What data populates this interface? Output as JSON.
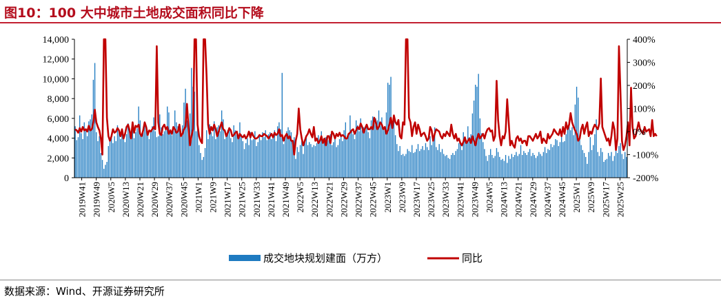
{
  "figure": {
    "title": "图10：100 大中城市土地成交面积同比下降",
    "source": "数据来源：Wind、开源证券研究所"
  },
  "chart_data": {
    "type": "bar+line",
    "left_axis": {
      "ylim": [
        0,
        14000
      ],
      "ticks": [
        "0",
        "2,000",
        "4,000",
        "6,000",
        "8,000",
        "10,000",
        "12,000",
        "14,000"
      ]
    },
    "right_axis": {
      "ylim": [
        -200,
        400
      ],
      "unit": "%",
      "ticks": [
        "-200%",
        "-100%",
        "0%",
        "100%",
        "200%",
        "300%",
        "400%"
      ]
    },
    "x_tick_labels": [
      "2019W41",
      "2019W49",
      "2020W5",
      "2020W13",
      "2020W21",
      "2020W29",
      "2020W37",
      "2020W45",
      "2021W1",
      "2021W9",
      "2021W17",
      "2021W25",
      "2021W33",
      "2021W41",
      "2021W49",
      "2022W5",
      "2022W13",
      "2022W21",
      "2022W29",
      "2022W37",
      "2022W45",
      "2023W1",
      "2023W9",
      "2023W17",
      "2023W25",
      "2023W33",
      "2023W41",
      "2023W49",
      "2024W5",
      "2024W13",
      "2024W21",
      "2024W29",
      "2024W37",
      "2024W45",
      "2025W1",
      "2025W9",
      "2025W17",
      "2025W25"
    ],
    "legend": [
      {
        "label": "成交地块规划建面（万方）",
        "color": "#1f7bc1",
        "type": "bar"
      },
      {
        "label": "同比",
        "color": "#c00000",
        "type": "line"
      }
    ],
    "series": [
      {
        "name": "成交地块规划建面（万方）",
        "axis": "left",
        "values": [
          5200,
          3800,
          4100,
          6300,
          4500,
          3900,
          5600,
          4800,
          4200,
          5700,
          5900,
          6400,
          9900,
          11600,
          4600,
          3700,
          4200,
          2500,
          1800,
          900,
          1300,
          1600,
          3200,
          3800,
          4400,
          3500,
          4200,
          3700,
          5300,
          4800,
          3900,
          4600,
          4100,
          3600,
          4400,
          5500,
          4800,
          4200,
          5300,
          4000,
          4600,
          5000,
          7200,
          5800,
          4300,
          4800,
          5400,
          4900,
          4400,
          3900,
          4600,
          5200,
          6100,
          4700,
          4100,
          4200,
          6400,
          5100,
          4400,
          4700,
          5000,
          7200,
          6600,
          4900,
          4300,
          5200,
          6800,
          5600,
          5200,
          4800,
          4300,
          5300,
          7600,
          9000,
          5800,
          4800,
          6500,
          11100,
          9200,
          8700,
          4700,
          6400,
          3300,
          2500,
          1800,
          2100,
          3000,
          4800,
          3900,
          5400,
          4600,
          4200,
          5700,
          3900,
          5100,
          5300,
          4700,
          6800,
          5900,
          3900,
          4400,
          4800,
          5100,
          4000,
          3600,
          5300,
          4800,
          4600,
          4100,
          5600,
          4400,
          3700,
          2900,
          3500,
          4000,
          3300,
          4600,
          3800,
          3900,
          4700,
          3200,
          3600,
          4200,
          3800,
          4600,
          4100,
          4800,
          3800,
          4400,
          4600,
          3900,
          4200,
          4800,
          3700,
          5200,
          5600,
          4900,
          10600,
          3400,
          4300,
          4700,
          5100,
          4800,
          4600,
          3800,
          4100,
          1900,
          3100,
          2600,
          3300,
          3700,
          2400,
          3700,
          4200,
          3300,
          3600,
          3400,
          3100,
          3300,
          3200,
          3500,
          4300,
          3600,
          4700,
          3800,
          3900,
          4100,
          4000,
          3800,
          4400,
          3300,
          3600,
          3900,
          3100,
          3300,
          3900,
          4200,
          3700,
          4800,
          5600,
          4100,
          4400,
          6300,
          4800,
          4400,
          3900,
          5800,
          5300,
          4700,
          6000,
          4800,
          5100,
          4900,
          5400,
          4600,
          4000,
          5800,
          6200,
          5600,
          6000,
          5800,
          6800,
          5300,
          6100,
          4800,
          5100,
          6600,
          9600,
          9400,
          10200,
          5700,
          6100,
          4300,
          3400,
          2700,
          3200,
          2300,
          2400,
          2200,
          2400,
          2900,
          2700,
          2600,
          3300,
          2500,
          2600,
          2900,
          3400,
          2700,
          2900,
          3200,
          2800,
          3500,
          3100,
          2800,
          4200,
          3300,
          3900,
          5100,
          3100,
          2800,
          3400,
          2600,
          2900,
          2400,
          2200,
          2300,
          2000,
          1900,
          2300,
          2500,
          2300,
          2700,
          2900,
          3500,
          3700,
          2800,
          4600,
          3800,
          3600,
          5200,
          4100,
          4400,
          6500,
          7800,
          9400,
          9200,
          10500,
          6000,
          4500,
          3600,
          2900,
          2200,
          1700,
          2300,
          2900,
          2300,
          2000,
          2200,
          3000,
          2600,
          2100,
          1800,
          1900,
          1700,
          2300,
          1500,
          2200,
          1900,
          2400,
          2100,
          2300,
          2600,
          2200,
          2400,
          3300,
          2300,
          2700,
          2500,
          2300,
          2600,
          2900,
          2200,
          2500,
          2300,
          2000,
          2200,
          2600,
          2400,
          2200,
          2600,
          3100,
          2500,
          2900,
          2800,
          3400,
          3100,
          3300,
          3900,
          3800,
          3200,
          3600,
          4700,
          3600,
          3700,
          4400,
          4900,
          5300,
          4800,
          5100,
          4300,
          7400,
          9200,
          8100,
          4200,
          3300,
          2800,
          2500,
          2100,
          1400,
          2600,
          4100,
          2800,
          3300,
          4400,
          5900,
          2600,
          2200,
          3000,
          2600,
          1600,
          1800,
          1900,
          2500,
          2200,
          2600,
          1700,
          2200,
          2800,
          2500,
          3200,
          3500,
          2400,
          1900,
          2600,
          2100
        ]
      },
      {
        "name": "同比",
        "axis": "right",
        "values": [
          10,
          5,
          -5,
          15,
          0,
          20,
          5,
          10,
          0,
          25,
          5,
          10,
          40,
          95,
          40,
          20,
          5,
          -30,
          -100,
          400,
          400,
          60,
          -20,
          -40,
          -20,
          10,
          -5,
          0,
          15,
          5,
          -20,
          10,
          -30,
          -10,
          20,
          30,
          5,
          -30,
          40,
          -5,
          25,
          20,
          30,
          -10,
          -20,
          5,
          40,
          20,
          -15,
          5,
          0,
          10,
          20,
          10,
          370,
          40,
          -10,
          -15,
          20,
          30,
          10,
          20,
          -10,
          5,
          -10,
          20,
          10,
          -5,
          0,
          30,
          -20,
          -10,
          10,
          20,
          120,
          20,
          -60,
          -20,
          10,
          400,
          400,
          30,
          -20,
          -40,
          -50,
          400,
          400,
          240,
          30,
          -10,
          20,
          5,
          30,
          10,
          -20,
          0,
          20,
          40,
          10,
          5,
          -20,
          -5,
          15,
          5,
          -20,
          -15,
          -5,
          0,
          -30,
          -10,
          -20,
          -25,
          -15,
          -30,
          -20,
          0,
          -25,
          -5,
          -20,
          -30,
          -30,
          -25,
          -15,
          -20,
          -20,
          -10,
          -15,
          -20,
          -30,
          -20,
          -10,
          -25,
          -5,
          -15,
          -10,
          10,
          -20,
          -15,
          -40,
          -20,
          -10,
          -30,
          -20,
          -40,
          -40,
          -100,
          -40,
          -10,
          100,
          10,
          -30,
          -60,
          -40,
          -20,
          -10,
          10,
          -10,
          -25,
          20,
          -40,
          -30,
          -50,
          -40,
          -20,
          -50,
          -30,
          -60,
          -20,
          -20,
          -50,
          0,
          -10,
          -30,
          -10,
          -20,
          -5,
          -20,
          -15,
          -20,
          -30,
          -30,
          -10,
          -5,
          5,
          10,
          -10,
          5,
          20,
          10,
          35,
          20,
          -5,
          15,
          30,
          10,
          10,
          20,
          10,
          60,
          40,
          10,
          20,
          40,
          30,
          10,
          20,
          -10,
          5,
          30,
          60,
          15,
          70,
          40,
          30,
          50,
          -20,
          -30,
          40,
          30,
          400,
          400,
          60,
          40,
          -20,
          20,
          40,
          -10,
          30,
          10,
          -20,
          -10,
          -5,
          -20,
          -40,
          -30,
          20,
          5,
          -40,
          -10,
          10,
          5,
          0,
          -20,
          -30,
          -10,
          -20,
          0,
          -10,
          -20,
          30,
          -10,
          -30,
          -10,
          -40,
          -30,
          -50,
          -60,
          -45,
          -25,
          -50,
          -40,
          -30,
          -50,
          -20,
          -40,
          -60,
          -30,
          -10,
          -30,
          -20,
          -10,
          -30,
          -5,
          10,
          15,
          0,
          5,
          -40,
          -20,
          220,
          50,
          -20,
          -60,
          -20,
          -30,
          0,
          140,
          40,
          -60,
          -40,
          -60,
          -70,
          -30,
          -20,
          -40,
          -30,
          -50,
          -40,
          -40,
          -60,
          -20,
          -20,
          -30,
          -40,
          -25,
          -10,
          -30,
          -20,
          0,
          -50,
          -30,
          -40,
          -50,
          -10,
          -30,
          -20,
          -10,
          10,
          0,
          -10,
          -15,
          10,
          -20,
          20,
          -10,
          40,
          10,
          30,
          80,
          40,
          20,
          5,
          -10,
          -40,
          -30,
          10,
          30,
          -10,
          20,
          40,
          -20,
          0,
          -10,
          15,
          30,
          20,
          10,
          35,
          230,
          20,
          0,
          -20,
          -40,
          -30,
          -60,
          -20,
          40,
          10,
          -80,
          -30,
          370,
          170,
          -40,
          -80,
          -60,
          -20,
          40,
          -60,
          190,
          20,
          -30,
          -20,
          10,
          40,
          10,
          0,
          -10,
          20,
          0,
          5,
          10,
          -20,
          50,
          -20,
          -10,
          -20
        ]
      }
    ]
  }
}
